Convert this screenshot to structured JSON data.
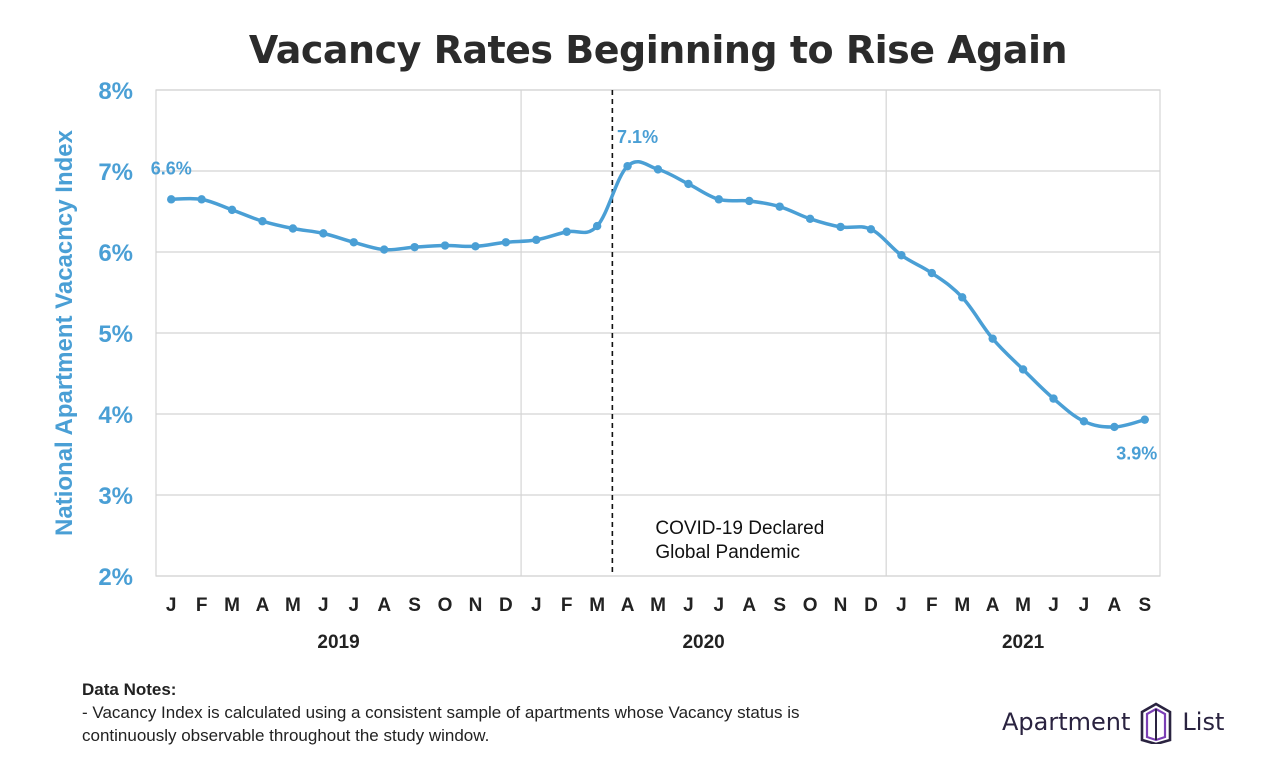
{
  "title": "Vacancy Rates Beginning to Rise Again",
  "chart_data": {
    "type": "line",
    "title": "Vacancy Rates Beginning to Rise Again",
    "ylabel": "National Apartment Vacacncy Index",
    "xlabel": "",
    "ylim": [
      2,
      8
    ],
    "y_ticks": [
      "2%",
      "3%",
      "4%",
      "5%",
      "6%",
      "7%",
      "8%"
    ],
    "categories": [
      "J",
      "F",
      "M",
      "A",
      "M",
      "J",
      "J",
      "A",
      "S",
      "O",
      "N",
      "D",
      "J",
      "F",
      "M",
      "A",
      "M",
      "J",
      "J",
      "A",
      "S",
      "O",
      "N",
      "D",
      "J",
      "F",
      "M",
      "A",
      "M",
      "J",
      "J",
      "A",
      "S"
    ],
    "year_labels": [
      "2019",
      "2020",
      "2021"
    ],
    "grid": true,
    "series": [
      {
        "color": "#4a9fd5",
        "values": [
          6.65,
          6.65,
          6.52,
          6.38,
          6.29,
          6.23,
          6.12,
          6.03,
          6.06,
          6.08,
          6.07,
          6.12,
          6.15,
          6.25,
          6.32,
          7.06,
          7.02,
          6.84,
          6.65,
          6.63,
          6.56,
          6.41,
          6.31,
          6.28,
          5.96,
          5.74,
          5.44,
          4.93,
          4.55,
          4.19,
          3.91,
          3.84,
          3.93
        ]
      }
    ],
    "data_labels": [
      {
        "index": 0,
        "text": "6.6%"
      },
      {
        "index": 15,
        "text": "7.1%"
      },
      {
        "index": 32,
        "text": "3.9%"
      }
    ],
    "annotation": {
      "after_index": 14,
      "lines": [
        "COVID-19 Declared",
        "Global Pandemic"
      ]
    }
  },
  "notes": {
    "title": "Data Notes:",
    "line1": "- Vacancy Index is calculated using a consistent sample of apartments whose Vacancy status is",
    "line2": "continuously observable throughout the study window."
  },
  "logo": {
    "word1": "Apartment",
    "word2": "List"
  },
  "colors": {
    "series": "#4a9fd5",
    "grid": "#d4d4d4",
    "title": "#2b2b2b",
    "logo": "#2a2340",
    "logo_accent": "#7b3fb5"
  }
}
